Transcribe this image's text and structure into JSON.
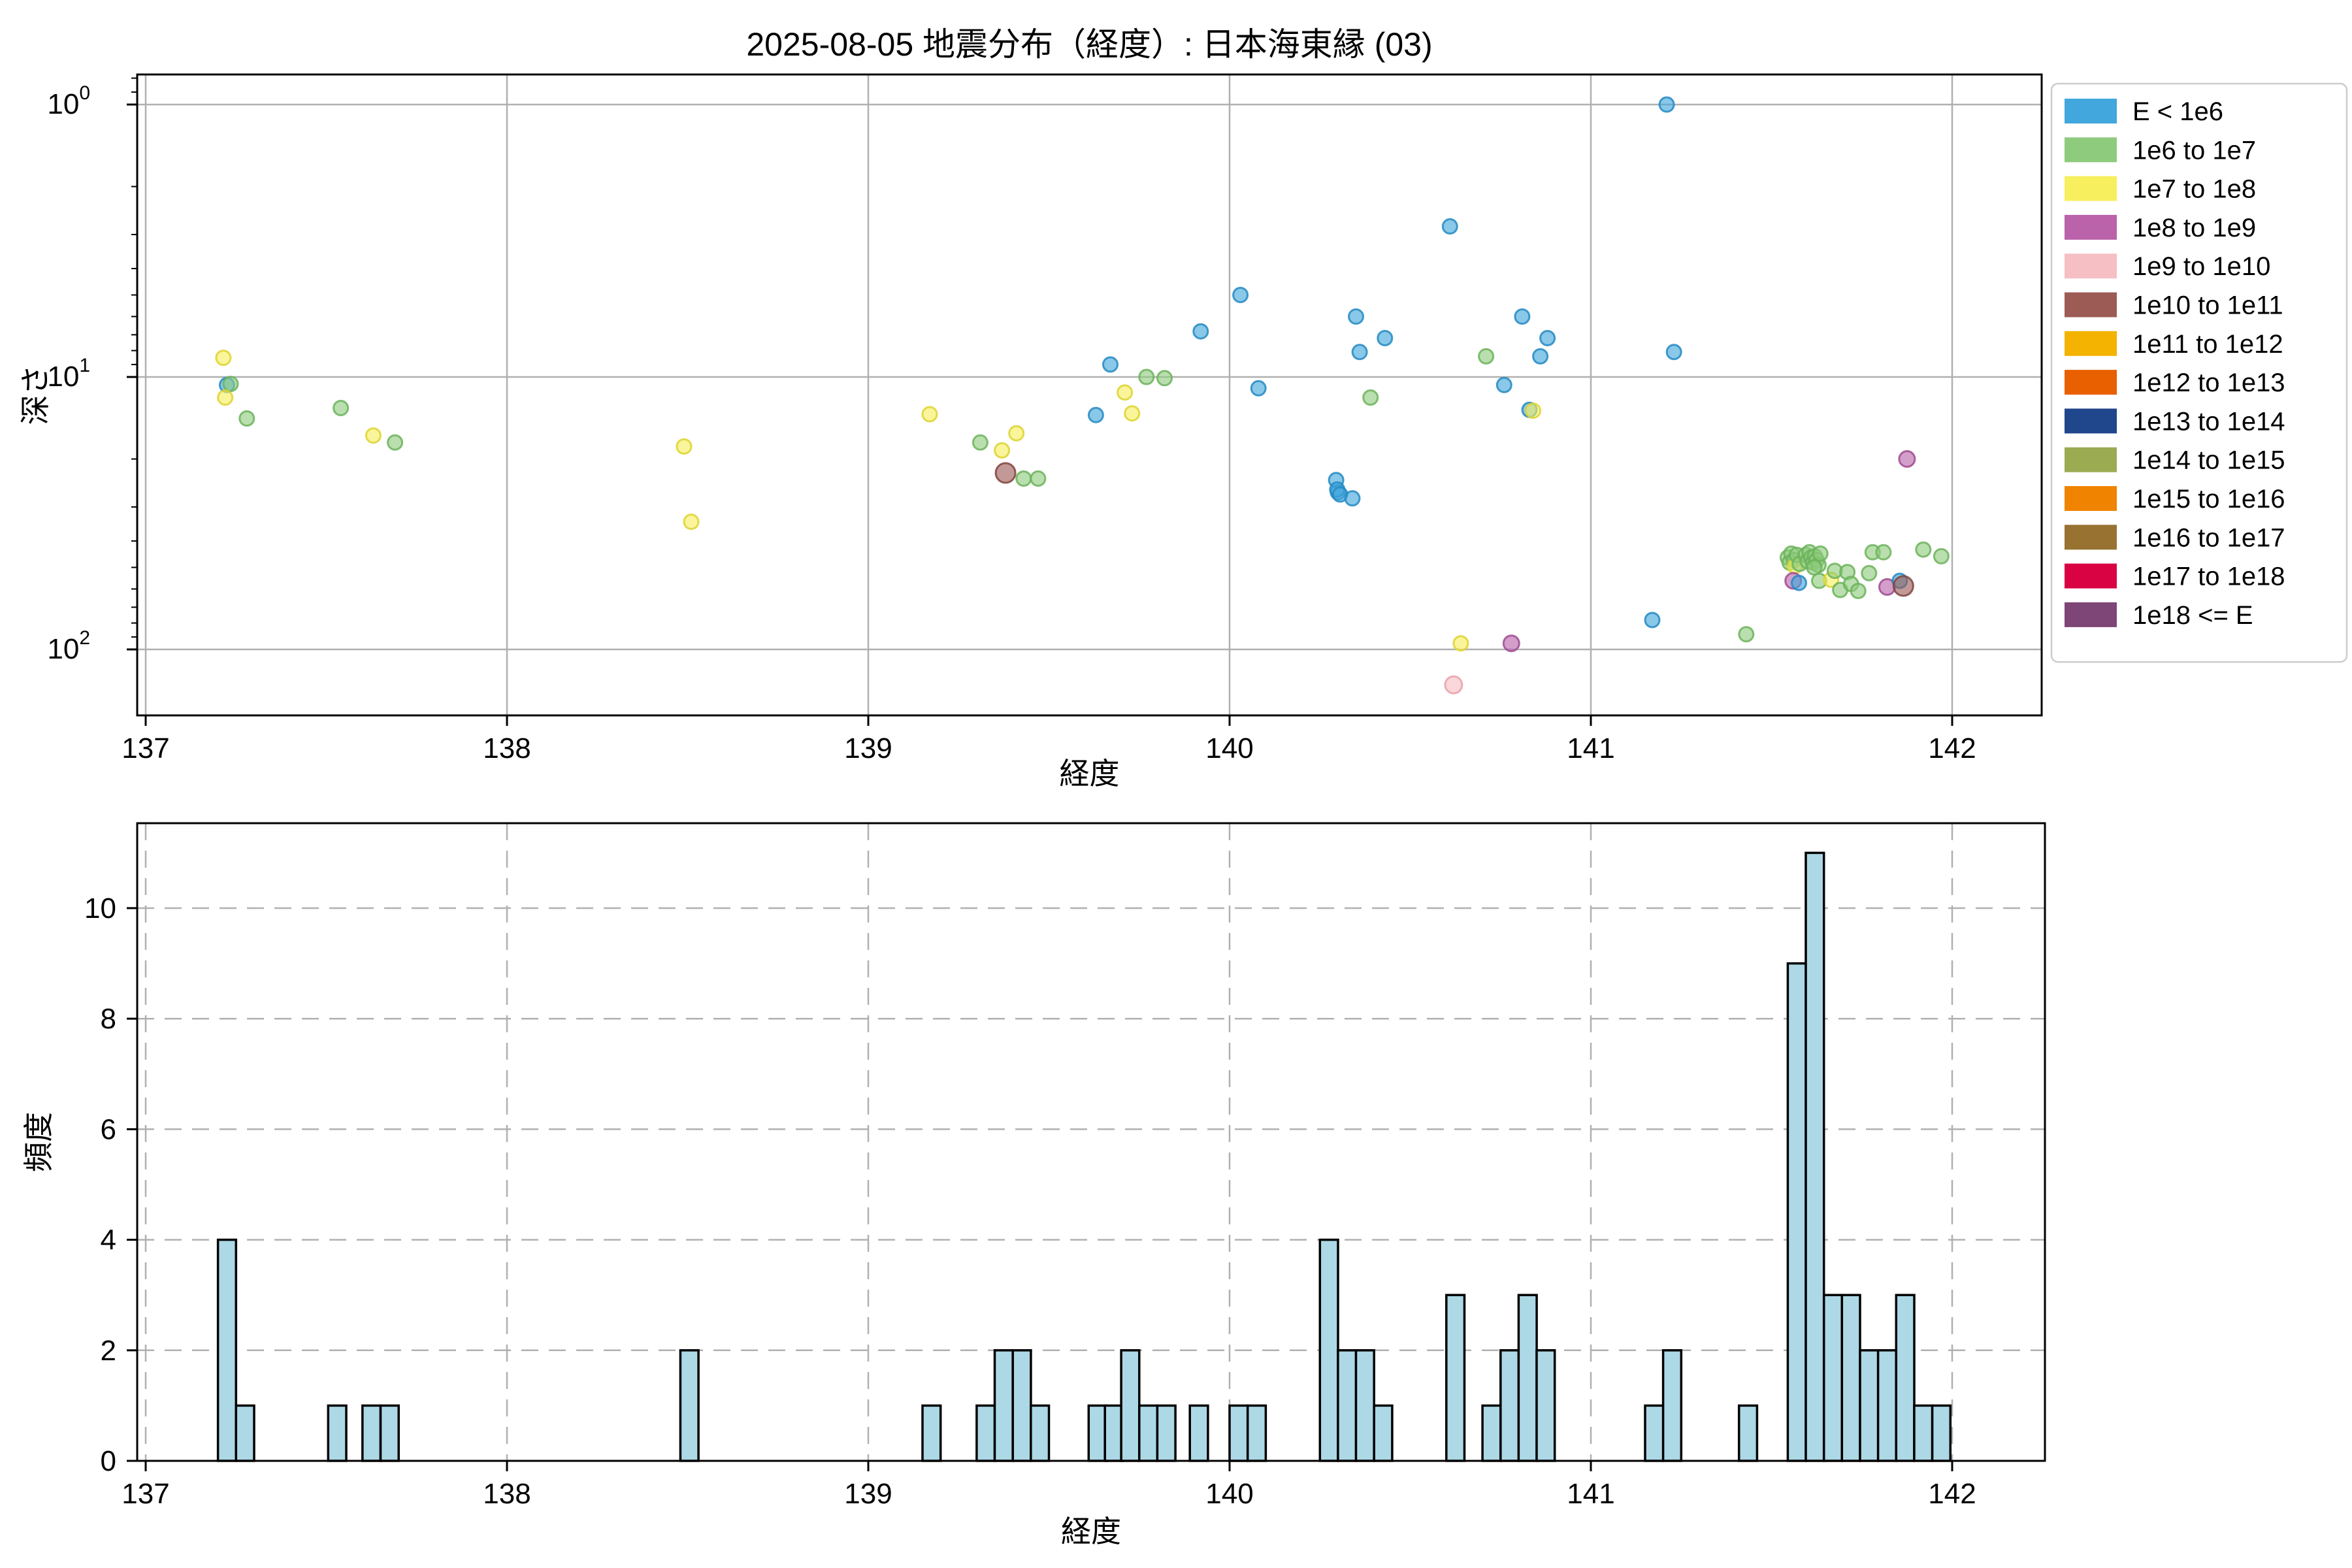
{
  "title": "2025-08-05 地震分布（経度）: 日本海東縁 (03)",
  "legend": {
    "entries": [
      {
        "label": "E < 1e6",
        "color": "#41a7dc"
      },
      {
        "label": "1e6 to 1e7",
        "color": "#8ecb7d"
      },
      {
        "label": "1e7 to 1e8",
        "color": "#f7ef5d"
      },
      {
        "label": "1e8 to 1e9",
        "color": "#ba62aa"
      },
      {
        "label": "1e9 to 1e10",
        "color": "#f5bfc3"
      },
      {
        "label": "1e10 to 1e11",
        "color": "#9d5b55"
      },
      {
        "label": "1e11 to 1e12",
        "color": "#f3b300"
      },
      {
        "label": "1e12 to 1e13",
        "color": "#e86000"
      },
      {
        "label": "1e13 to 1e14",
        "color": "#20468c"
      },
      {
        "label": "1e14 to 1e15",
        "color": "#9aab52"
      },
      {
        "label": "1e15 to 1e16",
        "color": "#f08300"
      },
      {
        "label": "1e16 to 1e17",
        "color": "#977231"
      },
      {
        "label": "1e17 to 1e18",
        "color": "#d90343"
      },
      {
        "label": "1e18 <= E",
        "color": "#7d4677"
      }
    ]
  },
  "point_styles": [
    {
      "fill": "#41a7dc",
      "edge": "#2589c2",
      "r": 11
    },
    {
      "fill": "#8ecb7d",
      "edge": "#6cb35c",
      "r": 11
    },
    {
      "fill": "#f7ef5d",
      "edge": "#ddd32f",
      "r": 11
    },
    {
      "fill": "#ba62aa",
      "edge": "#9e4b90",
      "r": 12
    },
    {
      "fill": "#f5bfc3",
      "edge": "#e9a2a9",
      "r": 13
    },
    {
      "fill": "#9d5b55",
      "edge": "#7f4540",
      "r": 15
    }
  ],
  "hist_style": {
    "fill": "#add8e6",
    "edge": "#000000"
  },
  "chart_data": [
    {
      "type": "scatter",
      "title": "2025-08-05 地震分布（経度）: 日本海東縁 (03)",
      "xlabel": "経度",
      "ylabel": "深さ",
      "xlim": [
        136.97,
        142.25
      ],
      "ylim_depth": [
        0.776,
        174.0
      ],
      "y_scale": "log-inverted",
      "xticks": [
        137,
        138,
        139,
        140,
        141,
        142
      ],
      "ytick_decades": [
        0,
        1,
        2
      ],
      "yminor_depths": [
        0.8,
        0.9,
        2,
        3,
        4,
        5,
        6,
        7,
        8,
        9,
        20,
        30,
        40,
        50,
        60,
        70,
        80,
        90
      ],
      "grid": "solid",
      "legend_position": "outside-upper-right",
      "series_note": "points are [longitude, depth_km, energy_bin_index]; energy_bin_index maps to legend.entries",
      "points": [
        [
          137.215,
          8.5,
          2
        ],
        [
          137.225,
          10.7,
          0
        ],
        [
          137.235,
          10.6,
          1
        ],
        [
          137.22,
          11.9,
          2
        ],
        [
          137.28,
          14.2,
          1
        ],
        [
          137.54,
          13.0,
          1
        ],
        [
          137.63,
          16.4,
          2
        ],
        [
          137.69,
          17.4,
          1
        ],
        [
          138.49,
          18,
          2
        ],
        [
          138.51,
          34,
          2
        ],
        [
          139.17,
          13.7,
          2
        ],
        [
          139.31,
          17.4,
          1
        ],
        [
          139.37,
          18.6,
          2
        ],
        [
          139.38,
          22.5,
          5
        ],
        [
          139.41,
          16.1,
          2
        ],
        [
          139.43,
          23.6,
          1
        ],
        [
          139.47,
          23.6,
          1
        ],
        [
          139.63,
          13.8,
          0
        ],
        [
          139.67,
          9.0,
          0
        ],
        [
          139.71,
          11.4,
          2
        ],
        [
          139.73,
          13.6,
          2
        ],
        [
          139.77,
          10.0,
          1
        ],
        [
          139.82,
          10.1,
          1
        ],
        [
          139.92,
          6.8,
          0
        ],
        [
          140.03,
          5.0,
          0
        ],
        [
          140.08,
          11.0,
          0
        ],
        [
          140.295,
          23.9,
          0
        ],
        [
          140.3,
          26.5,
          0
        ],
        [
          140.298,
          25.9,
          0
        ],
        [
          140.306,
          27.0,
          0
        ],
        [
          140.34,
          27.9,
          0
        ],
        [
          140.35,
          6.0,
          0
        ],
        [
          140.36,
          8.1,
          0
        ],
        [
          140.39,
          11.9,
          1
        ],
        [
          140.43,
          7.2,
          0
        ],
        [
          140.61,
          2.8,
          0
        ],
        [
          140.62,
          135,
          4
        ],
        [
          140.64,
          95,
          2
        ],
        [
          140.71,
          8.4,
          1
        ],
        [
          140.76,
          10.7,
          0
        ],
        [
          140.78,
          95,
          3
        ],
        [
          140.81,
          6.0,
          0
        ],
        [
          140.83,
          13.2,
          0
        ],
        [
          140.84,
          13.3,
          2
        ],
        [
          140.86,
          8.4,
          0
        ],
        [
          140.88,
          7.2,
          0
        ],
        [
          141.17,
          78,
          0
        ],
        [
          141.21,
          1.0,
          0
        ],
        [
          141.23,
          8.1,
          0
        ],
        [
          141.43,
          88,
          1
        ],
        [
          141.545,
          46,
          1
        ],
        [
          141.55,
          48,
          1
        ],
        [
          141.555,
          44.5,
          1
        ],
        [
          141.562,
          47,
          1
        ],
        [
          141.565,
          49.5,
          2
        ],
        [
          141.57,
          45,
          1
        ],
        [
          141.578,
          48.5,
          1
        ],
        [
          141.56,
          56,
          3
        ],
        [
          141.576,
          57,
          0
        ],
        [
          141.595,
          45,
          1
        ],
        [
          141.6,
          47.5,
          1
        ],
        [
          141.605,
          44,
          1
        ],
        [
          141.61,
          46,
          1
        ],
        [
          141.615,
          48,
          1
        ],
        [
          141.62,
          45.5,
          1
        ],
        [
          141.625,
          47,
          1
        ],
        [
          141.63,
          49,
          1
        ],
        [
          141.635,
          44.5,
          1
        ],
        [
          141.618,
          50,
          1
        ],
        [
          141.632,
          56,
          1
        ],
        [
          141.665,
          55.5,
          2
        ],
        [
          141.675,
          51.5,
          1
        ],
        [
          141.69,
          60.5,
          1
        ],
        [
          141.71,
          52,
          1
        ],
        [
          141.72,
          57.5,
          1
        ],
        [
          141.74,
          61,
          1
        ],
        [
          141.77,
          52.5,
          1
        ],
        [
          141.78,
          44,
          1
        ],
        [
          141.81,
          44,
          1
        ],
        [
          141.82,
          59,
          3
        ],
        [
          141.855,
          56,
          0
        ],
        [
          141.865,
          58.5,
          5
        ],
        [
          141.875,
          20,
          3
        ],
        [
          141.92,
          43,
          1
        ],
        [
          141.97,
          45.5,
          1
        ]
      ]
    },
    {
      "type": "bar",
      "xlabel": "経度",
      "ylabel": "頻度",
      "xlim": [
        136.97,
        142.25
      ],
      "ylim": [
        0,
        11.55
      ],
      "xticks": [
        137,
        138,
        139,
        140,
        141,
        142
      ],
      "yticks": [
        0,
        2,
        4,
        6,
        8,
        10
      ],
      "grid": "dashed",
      "bin_width": 0.05,
      "bars_note": "bars are [bin_left_longitude, count]",
      "bars": [
        [
          137.2,
          4
        ],
        [
          137.25,
          1
        ],
        [
          137.505,
          1
        ],
        [
          137.6,
          1
        ],
        [
          137.65,
          1
        ],
        [
          138.48,
          2
        ],
        [
          139.15,
          1
        ],
        [
          139.3,
          1
        ],
        [
          139.35,
          2
        ],
        [
          139.4,
          2
        ],
        [
          139.45,
          1
        ],
        [
          139.61,
          1
        ],
        [
          139.655,
          1
        ],
        [
          139.7,
          2
        ],
        [
          139.75,
          1
        ],
        [
          139.8,
          1
        ],
        [
          139.89,
          1
        ],
        [
          140.0,
          1
        ],
        [
          140.05,
          1
        ],
        [
          140.25,
          4
        ],
        [
          140.3,
          2
        ],
        [
          140.35,
          2
        ],
        [
          140.4,
          1
        ],
        [
          140.6,
          3
        ],
        [
          140.7,
          1
        ],
        [
          140.75,
          2
        ],
        [
          140.8,
          3
        ],
        [
          140.85,
          2
        ],
        [
          141.15,
          1
        ],
        [
          141.2,
          2
        ],
        [
          141.41,
          1
        ],
        [
          141.545,
          9
        ],
        [
          141.595,
          11
        ],
        [
          141.645,
          3
        ],
        [
          141.695,
          3
        ],
        [
          141.745,
          2
        ],
        [
          141.795,
          2
        ],
        [
          141.845,
          3
        ],
        [
          141.895,
          1
        ],
        [
          141.945,
          1
        ]
      ]
    }
  ]
}
